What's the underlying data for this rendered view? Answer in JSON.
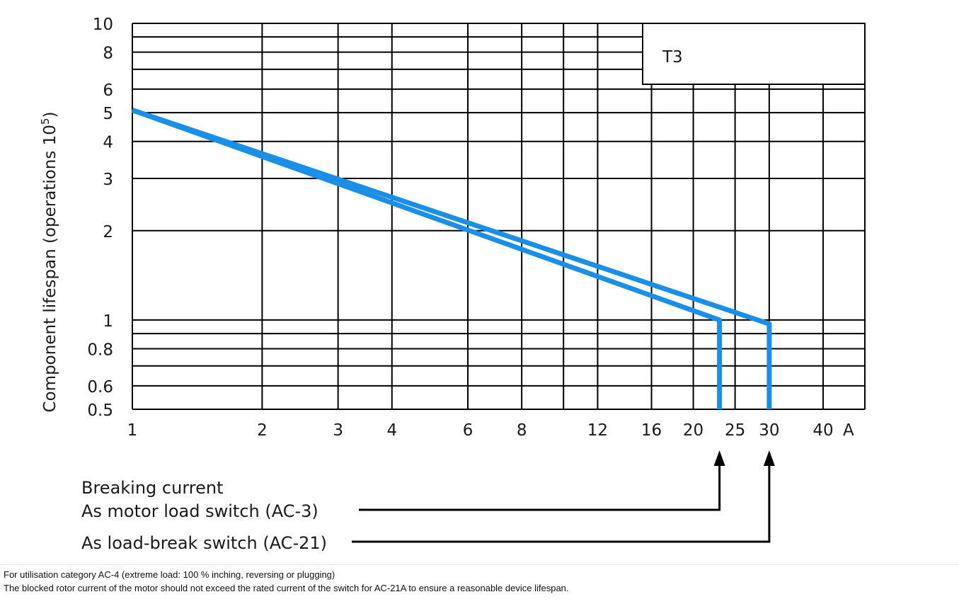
{
  "chart_data": {
    "type": "line",
    "x_scale": "log",
    "y_scale": "log",
    "xlim": [
      1,
      50
    ],
    "ylim": [
      0.5,
      10
    ],
    "ylabel": "Component lifespan (operations 10",
    "ylabel_superscript": "5",
    "ylabel_suffix": ")",
    "x_ticks": [
      {
        "v": 1,
        "label": "1"
      },
      {
        "v": 2,
        "label": "2"
      },
      {
        "v": 3,
        "label": "3"
      },
      {
        "v": 4,
        "label": "4"
      },
      {
        "v": 6,
        "label": "6"
      },
      {
        "v": 8,
        "label": "8"
      },
      {
        "v": 12,
        "label": "12"
      },
      {
        "v": 16,
        "label": "16"
      },
      {
        "v": 20,
        "label": "20"
      },
      {
        "v": 25,
        "label": "25"
      },
      {
        "v": 30,
        "label": "30"
      },
      {
        "v": 40,
        "label": "40"
      }
    ],
    "x_unit_label": "A",
    "x_grid": [
      1,
      2,
      3,
      4,
      6,
      8,
      10,
      12,
      16,
      20,
      25,
      30,
      40,
      50
    ],
    "y_ticks": [
      {
        "v": 10,
        "label": "10"
      },
      {
        "v": 8,
        "label": "8"
      },
      {
        "v": 6,
        "label": "6"
      },
      {
        "v": 5,
        "label": "5"
      },
      {
        "v": 4,
        "label": "4"
      },
      {
        "v": 3,
        "label": "3"
      },
      {
        "v": 2,
        "label": "2"
      },
      {
        "v": 1,
        "label": "1"
      },
      {
        "v": 0.8,
        "label": "0.8"
      },
      {
        "v": 0.6,
        "label": "0.6"
      },
      {
        "v": 0.5,
        "label": "0.5"
      }
    ],
    "y_grid": [
      0.5,
      0.6,
      0.7,
      0.8,
      0.9,
      1,
      2,
      3,
      4,
      5,
      6,
      7,
      8,
      9,
      10
    ],
    "series": [
      {
        "points": [
          [
            1,
            5.1
          ],
          [
            23,
            1.0
          ],
          [
            23,
            0.5
          ]
        ],
        "color": "#1a8fe8"
      },
      {
        "points": [
          [
            1,
            5.1
          ],
          [
            30,
            0.97
          ],
          [
            30,
            0.5
          ]
        ],
        "color": "#1a8fe8"
      }
    ],
    "legend_box_label": "T3",
    "annotations": {
      "heading": "Breaking current",
      "motor_label": "As motor load switch (AC-3)",
      "motor_x": 23,
      "loadbreak_label": "As load-break switch (AC-21)",
      "loadbreak_x": 30
    }
  },
  "footnotes": [
    "For utilisation category AC-4 (extreme load: 100 % inching, reversing or plugging)",
    "The blocked rotor current of the motor should not exceed the rated current of the switch for AC-21A to ensure a reasonable device lifespan."
  ]
}
